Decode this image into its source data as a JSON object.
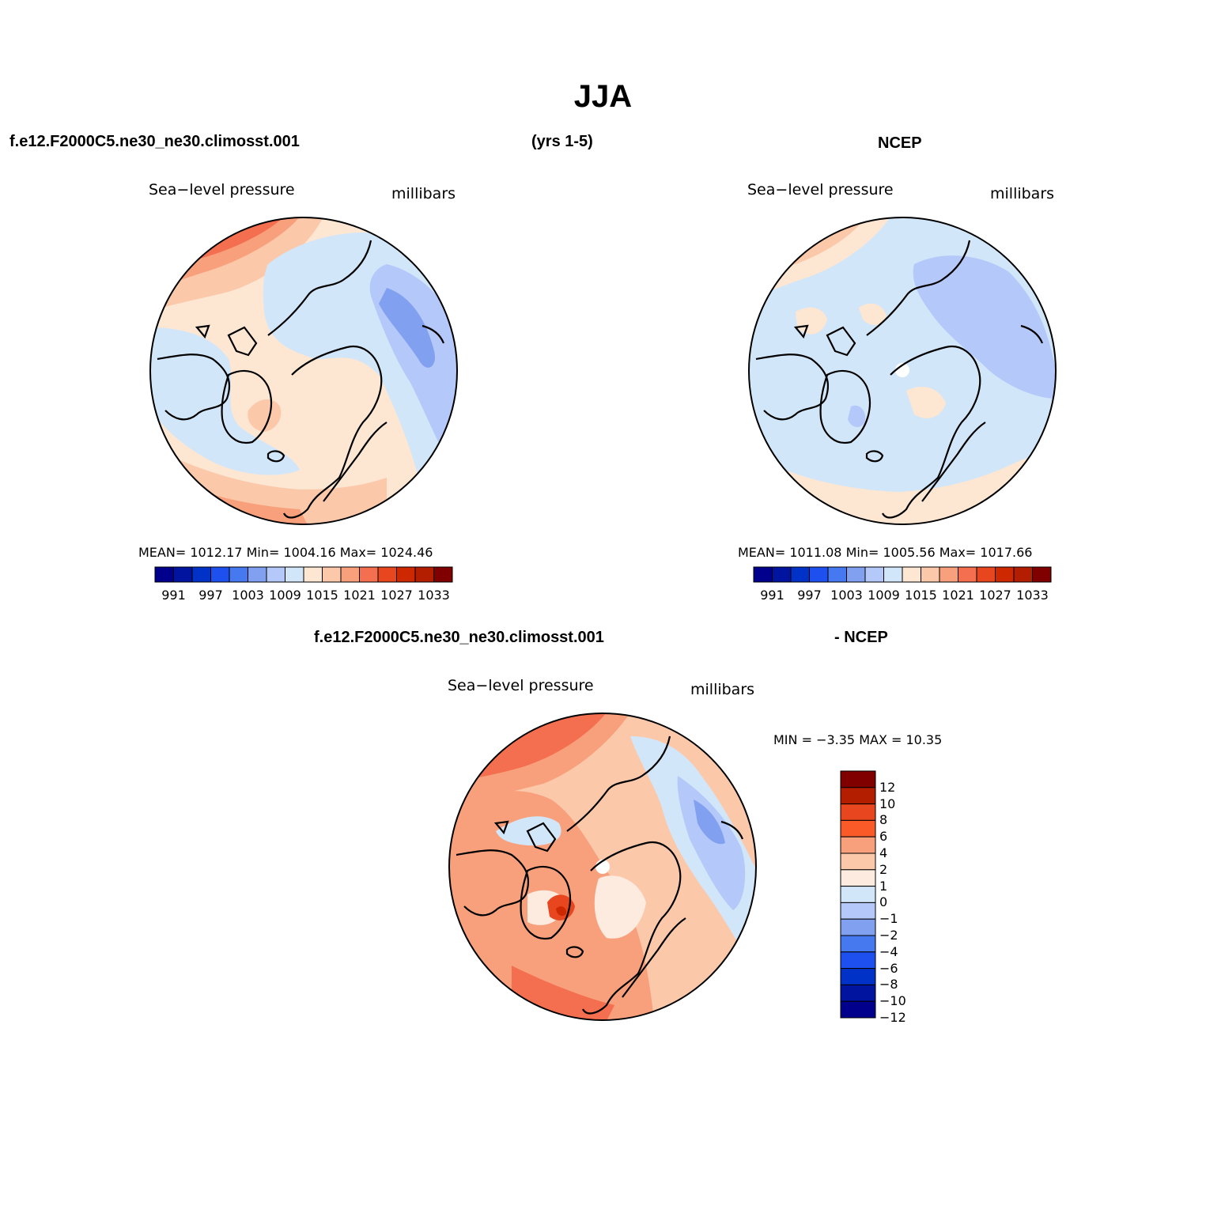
{
  "title": "JJA",
  "top_left_header": "f.e12.F2000C5.ne30_ne30.climosst.001",
  "top_mid_header": "(yrs 1-5)",
  "top_right_header": "NCEP",
  "bottom_header_left": "f.e12.F2000C5.ne30_ne30.climosst.001",
  "bottom_header_right": "- NCEP",
  "panels": [
    {
      "field_label": "Sea−level pressure",
      "units_label": "millibars",
      "stats": "MEAN= 1012.17   Min= 1004.16   Max= 1024.46"
    },
    {
      "field_label": "Sea−level pressure",
      "units_label": "millibars",
      "stats": "MEAN= 1011.08   Min= 1005.56   Max= 1017.66"
    },
    {
      "field_label": "Sea−level pressure",
      "units_label": "millibars",
      "stats": "MIN =   −3.35  MAX =   10.35"
    }
  ],
  "abs_colorbar": {
    "colors": [
      "#00008c",
      "#0014a0",
      "#0032c8",
      "#1e50f0",
      "#4678f0",
      "#82a0f0",
      "#b4c8fa",
      "#d2e6fa",
      "#fde6d2",
      "#fcc8aa",
      "#f8a07c",
      "#f46e50",
      "#e8461e",
      "#cd2800",
      "#b41e00",
      "#800000"
    ],
    "tick_labels": [
      "991",
      "997",
      "1003",
      "1009",
      "1015",
      "1021",
      "1027",
      "1033"
    ]
  },
  "diff_colorbar": {
    "colors": [
      "#800000",
      "#b41e00",
      "#e8461e",
      "#fa5a28",
      "#f8a07c",
      "#fcc8aa",
      "#fdebe0",
      "#d2e6fa",
      "#b4c8fa",
      "#82a0f0",
      "#4678f0",
      "#1e50f0",
      "#0032c8",
      "#0014a0",
      "#00008c"
    ],
    "tick_labels": [
      "12",
      "10",
      "8",
      "6",
      "4",
      "2",
      "1",
      "0",
      "−1",
      "−2",
      "−4",
      "−6",
      "−8",
      "−10",
      "−12"
    ]
  }
}
